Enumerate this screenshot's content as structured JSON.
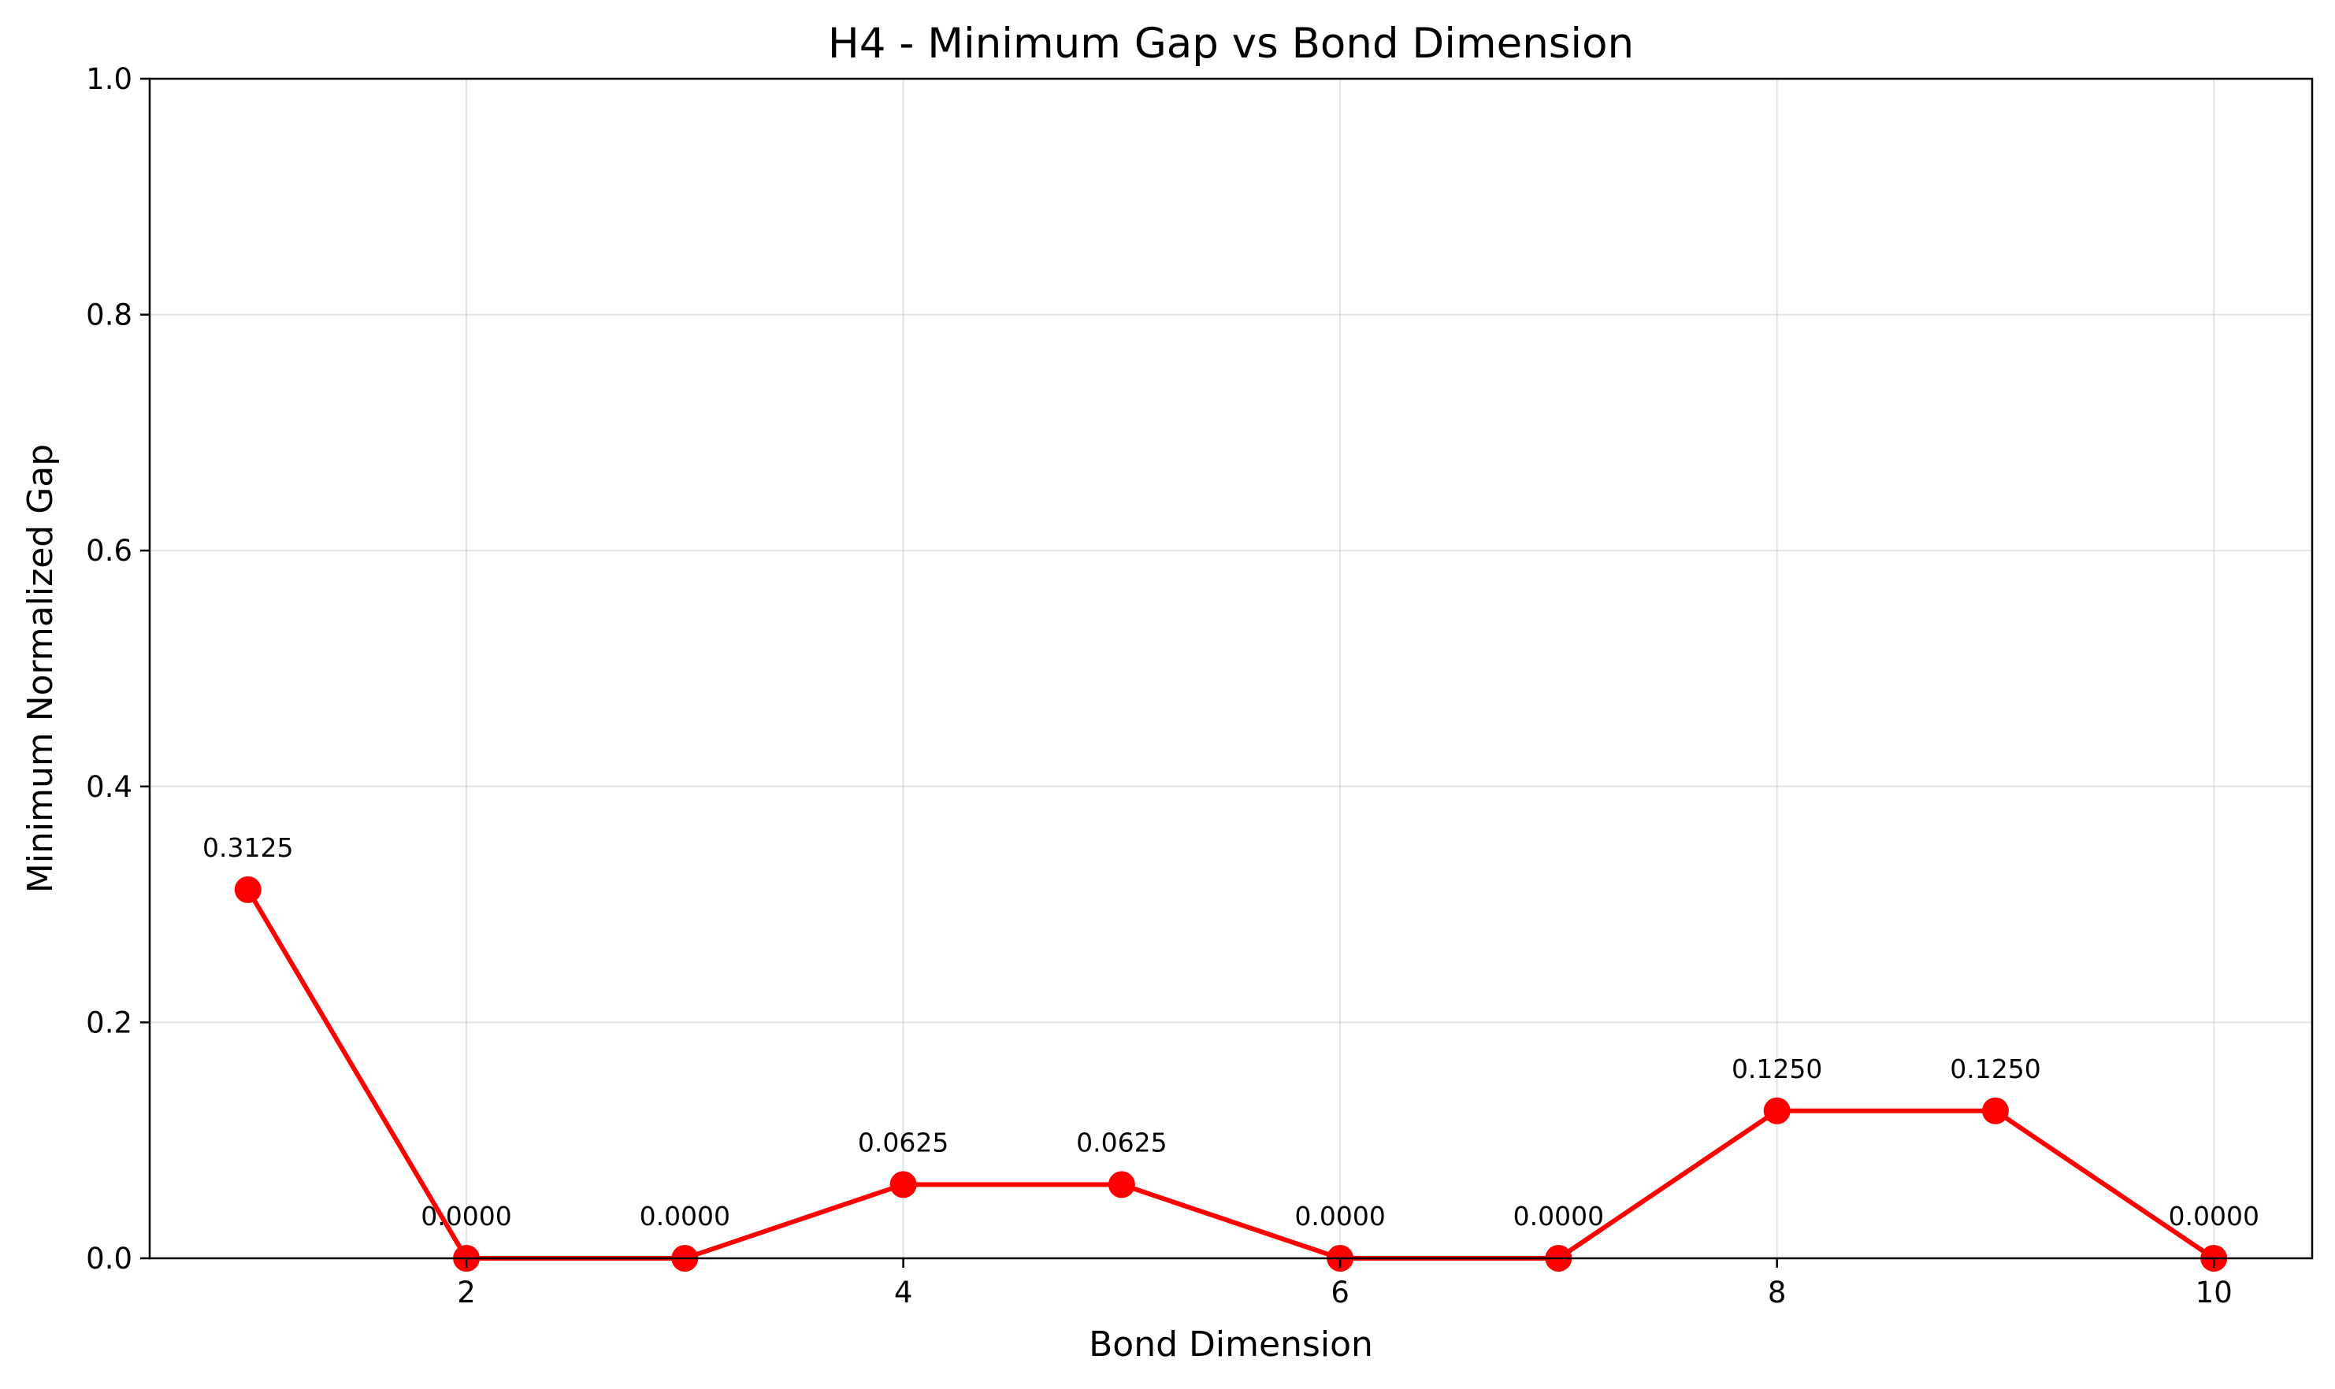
{
  "chart_data": {
    "type": "line",
    "title": "H4 - Minimum Gap vs Bond Dimension",
    "xlabel": "Bond Dimension",
    "ylabel": "Minimum Normalized Gap",
    "xlim": [
      0.55,
      10.45
    ],
    "ylim": [
      0,
      1.0
    ],
    "xticks": [
      2,
      4,
      6,
      8,
      10
    ],
    "yticks": [
      0.0,
      0.2,
      0.4,
      0.6,
      0.8,
      1.0
    ],
    "ytick_labels": [
      "0.0",
      "0.2",
      "0.4",
      "0.6",
      "0.8",
      "1.0"
    ],
    "grid": true,
    "color": "#ff0000",
    "series": [
      {
        "x": [
          1,
          2,
          3,
          4,
          5,
          6,
          7,
          8,
          9,
          10
        ],
        "values": [
          0.3125,
          0.0,
          0.0,
          0.0625,
          0.0625,
          0.0,
          0.0,
          0.125,
          0.125,
          0.0
        ],
        "labels": [
          "0.3125",
          "0.0000",
          "0.0000",
          "0.0625",
          "0.0625",
          "0.0000",
          "0.0000",
          "0.1250",
          "0.1250",
          "0.0000"
        ]
      }
    ]
  }
}
